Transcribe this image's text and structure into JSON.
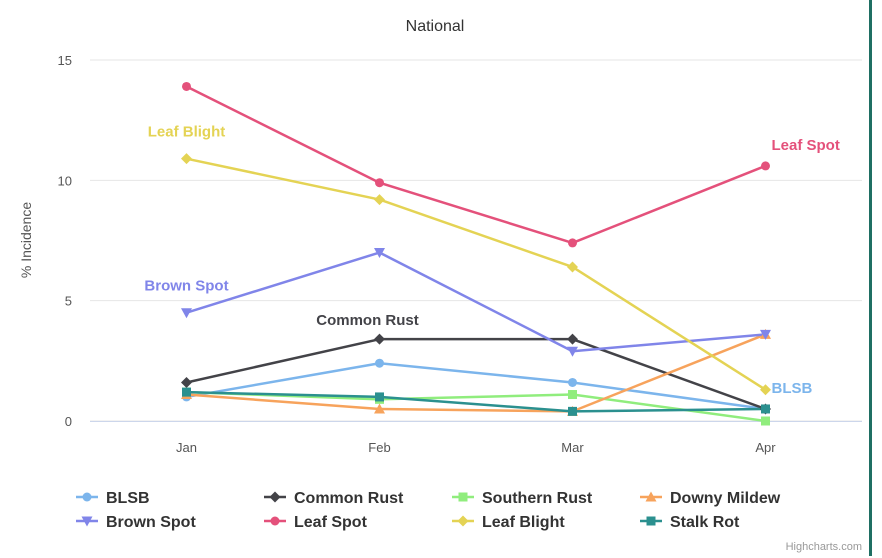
{
  "chart_data": {
    "type": "line",
    "title": "National",
    "xlabel": "",
    "ylabel": "% Incidence",
    "categories": [
      "Jan",
      "Feb",
      "Mar",
      "Apr"
    ],
    "ylim": [
      0,
      15
    ],
    "yticks": [
      0,
      5,
      10,
      15
    ],
    "grid": true,
    "legend_position": "bottom",
    "series": [
      {
        "name": "BLSB",
        "color": "#7cb5ec",
        "marker": "circle",
        "values": [
          1.0,
          2.4,
          1.6,
          0.5
        ],
        "end_label": "BLSB"
      },
      {
        "name": "Common Rust",
        "color": "#434348",
        "marker": "diamond",
        "values": [
          1.6,
          3.4,
          3.4,
          0.5
        ],
        "peak_label": "Common Rust"
      },
      {
        "name": "Southern Rust",
        "color": "#90ed7d",
        "marker": "square",
        "values": [
          1.2,
          0.9,
          1.1,
          0.0
        ]
      },
      {
        "name": "Downy Mildew",
        "color": "#f7a35c",
        "marker": "triangle",
        "values": [
          1.1,
          0.5,
          0.4,
          3.6
        ]
      },
      {
        "name": "Brown Spot",
        "color": "#8085e9",
        "marker": "triangle-down",
        "values": [
          4.5,
          7.0,
          2.9,
          3.6
        ],
        "start_label": "Brown Spot"
      },
      {
        "name": "Leaf Spot",
        "color": "#e4517b",
        "marker": "circle",
        "values": [
          13.9,
          9.9,
          7.4,
          10.6
        ],
        "end_label": "Leaf Spot"
      },
      {
        "name": "Leaf Blight",
        "color": "#e4d354",
        "marker": "diamond",
        "values": [
          10.9,
          9.2,
          6.4,
          1.3
        ],
        "start_label": "Leaf Blight"
      },
      {
        "name": "Stalk Rot",
        "color": "#2b908f",
        "marker": "square",
        "values": [
          1.2,
          1.0,
          0.4,
          0.5
        ]
      }
    ],
    "credits": "Highcharts.com"
  }
}
